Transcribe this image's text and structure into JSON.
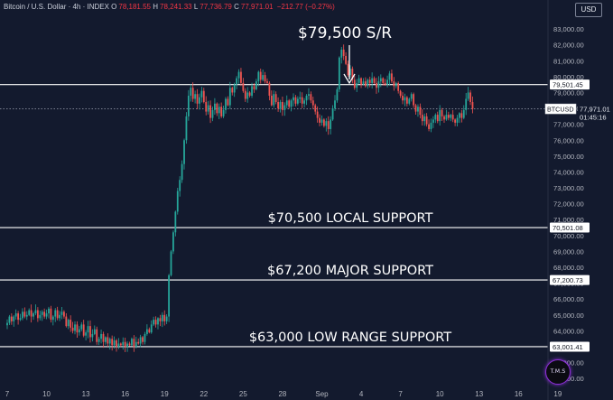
{
  "header": {
    "symbol": "Bitcoin / U.S. Dollar · 4h · INDEX",
    "o_label": "O",
    "o": "78,181.55",
    "h_label": "H",
    "h": "78,241.33",
    "l_label": "L",
    "l": "77,736.79",
    "c_label": "C",
    "c": "77,971.01",
    "change": "−212.77 (−0.27%)"
  },
  "currency_button": "USD",
  "logo_text": "T.M.S",
  "colors": {
    "background": "#131a2e",
    "up": "#26a69a",
    "down": "#ef5350",
    "level_line": "#ffffff",
    "axis_text": "#b2b5be"
  },
  "chart_data": {
    "type": "candlestick",
    "interval": "4h",
    "title": "Bitcoin / U.S. Dollar · 4h · INDEX",
    "ylim": [
      60500,
      83800
    ],
    "grid": false,
    "x_ticks": [
      "7",
      "10",
      "13",
      "16",
      "19",
      "22",
      "25",
      "28",
      "Sep",
      "4",
      "7",
      "10",
      "13",
      "16",
      "19"
    ],
    "x_tick_bars": [
      0,
      18,
      36,
      54,
      72,
      90,
      108,
      126,
      144,
      162,
      180,
      198,
      216,
      234,
      252
    ],
    "y_ticks": [
      "83,000.00",
      "82,000.00",
      "81,000.00",
      "80,000.00",
      "79,000.00",
      "78,000.00",
      "77,000.00",
      "76,000.00",
      "75,000.00",
      "74,000.00",
      "73,000.00",
      "72,000.00",
      "71,000.00",
      "70,000.00",
      "69,000.00",
      "68,000.00",
      "67,000.00",
      "66,000.00",
      "65,000.00",
      "64,000.00",
      "63,000.00",
      "62,000.00",
      "61,000.00"
    ],
    "current_price": {
      "symbol": "BTCUSD",
      "value": "77,971.01",
      "countdown": "01:45:16",
      "price": 77971.01
    },
    "levels": [
      {
        "price": 79501.45,
        "value_label": "79,501.45",
        "annotation": "$79,500 S/R",
        "annotation_position": "top-center",
        "arrow": true
      },
      {
        "price": 70501.08,
        "value_label": "70,501.08",
        "annotation": "$70,500 LOCAL SUPPORT"
      },
      {
        "price": 67200.73,
        "value_label": "67,200.73",
        "annotation": "$67,200 MAJOR SUPPORT"
      },
      {
        "price": 63001.41,
        "value_label": "63,001.41",
        "annotation": "$63,000 LOW RANGE SUPPORT"
      }
    ],
    "closes": [
      64500,
      64900,
      64600,
      64900,
      65100,
      64700,
      64800,
      65200,
      64900,
      65000,
      65300,
      64900,
      65100,
      65300,
      64800,
      65000,
      65200,
      64900,
      65100,
      65400,
      64700,
      64900,
      65300,
      64800,
      65000,
      65200,
      64900,
      64300,
      64700,
      64200,
      64000,
      64400,
      63900,
      64100,
      64400,
      63700,
      63900,
      64300,
      63600,
      63800,
      64100,
      63300,
      63500,
      63800,
      63300,
      63600,
      63200,
      63500,
      63100,
      63400,
      63000,
      63200,
      63100,
      63300,
      63000,
      63200,
      63100,
      63500,
      63000,
      63300,
      63200,
      63600,
      63300,
      63800,
      64100,
      63900,
      64400,
      64700,
      64400,
      64800,
      64600,
      65000,
      64600,
      64900,
      67500,
      69000,
      70200,
      71500,
      72800,
      73500,
      74500,
      76000,
      77500,
      78800,
      79300,
      78600,
      78900,
      78300,
      78700,
      79100,
      78400,
      77800,
      78200,
      77400,
      77900,
      78300,
      77700,
      78100,
      77500,
      77900,
      78600,
      78200,
      79300,
      79000,
      79500,
      79900,
      80300,
      79600,
      79100,
      78600,
      79000,
      78800,
      79400,
      79200,
      79700,
      80300,
      79800,
      80100,
      79700,
      79600,
      78800,
      78200,
      78900,
      78400,
      78000,
      78400,
      77900,
      78200,
      78500,
      78100,
      78500,
      78700,
      78300,
      78600,
      78700,
      78300,
      78500,
      78800,
      78900,
      78500,
      78200,
      77800,
      77400,
      77100,
      77300,
      76900,
      77200,
      76700,
      77300,
      78000,
      78500,
      79200,
      81200,
      81700,
      81300,
      80800,
      80100,
      80500,
      79800,
      79300,
      79600,
      79900,
      79500,
      79700,
      79400,
      79800,
      79600,
      79900,
      79600,
      79300,
      79700,
      79900,
      79600,
      79500,
      79800,
      80200,
      79700,
      79400,
      79600,
      79100,
      78800,
      78500,
      78700,
      78300,
      78600,
      78900,
      78200,
      77800,
      78100,
      77600,
      77200,
      77500,
      77000,
      76700,
      77100,
      77300,
      77600,
      77200,
      77900,
      77500,
      77300,
      77600,
      77400,
      77600,
      77300,
      77100,
      77400,
      77700,
      77400,
      77900,
      78600,
      79000,
      78400,
      77971.01
    ]
  }
}
